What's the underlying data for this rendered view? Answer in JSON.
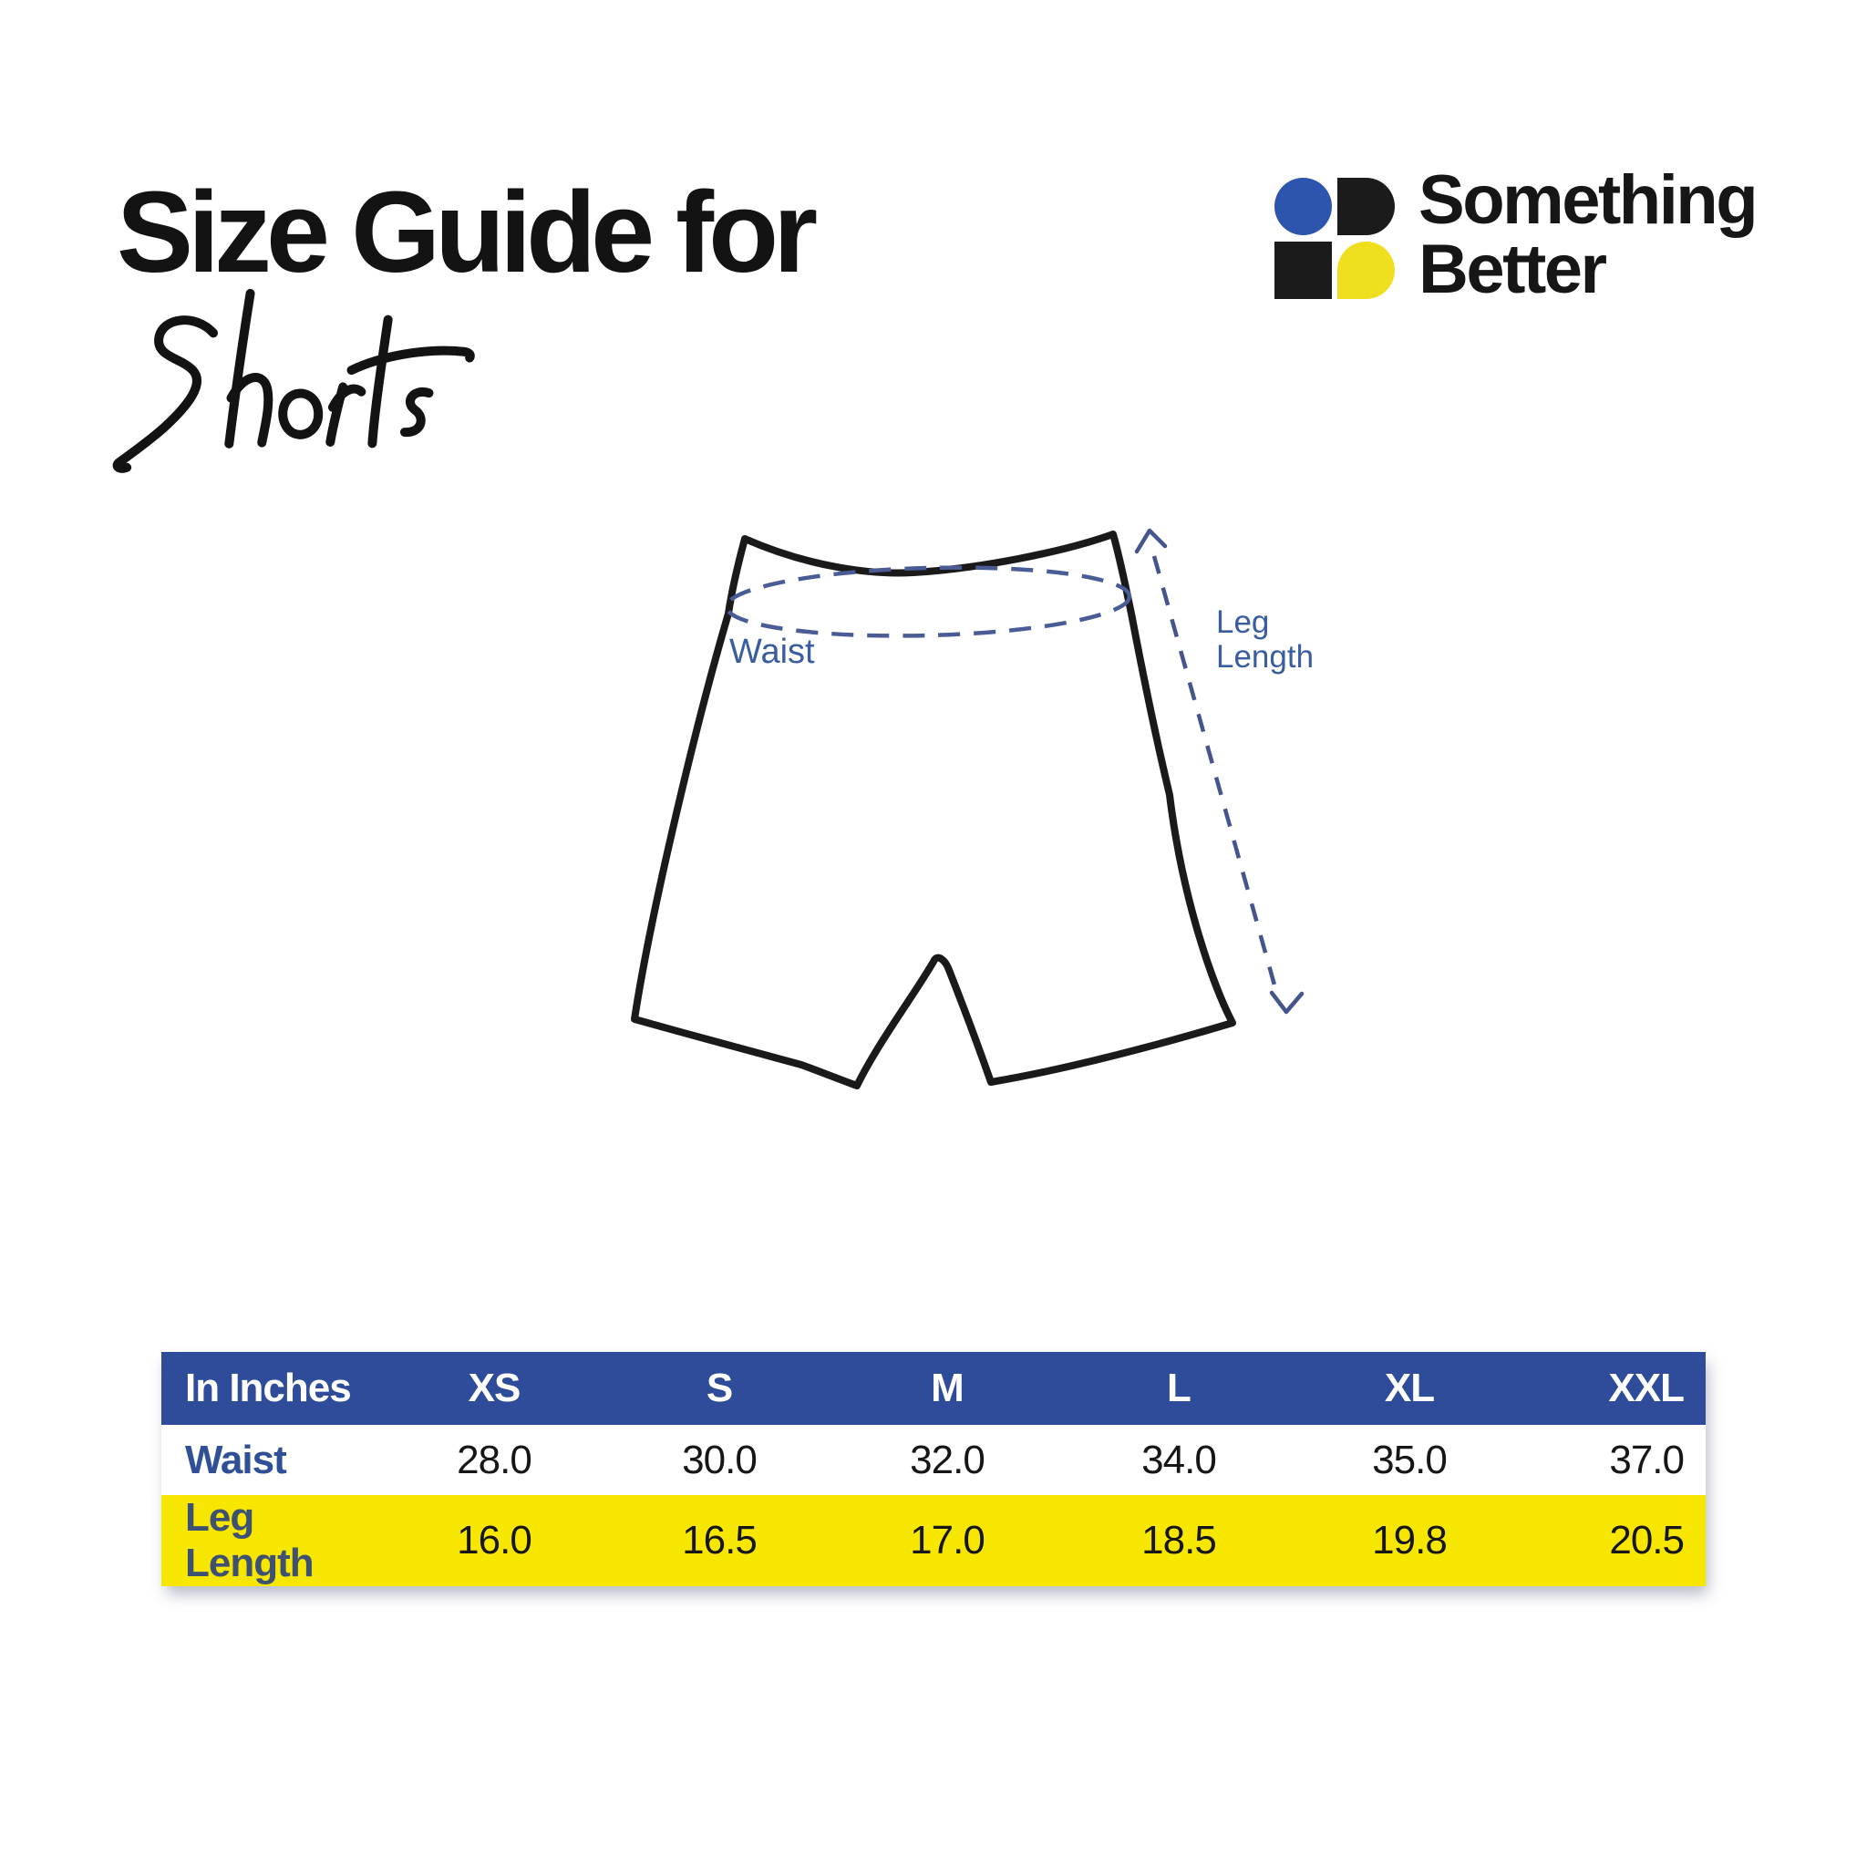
{
  "header": {
    "title_line1": "Size Guide for",
    "title_line2": "Shorts"
  },
  "brand": {
    "name_line1": "Something",
    "name_line2": "Better",
    "mark_colors": {
      "circle": "#2E55AE",
      "d_shape": "#1B1B1B",
      "square": "#1B1B1B",
      "drop": "#F0DF1F"
    }
  },
  "diagram": {
    "waist_label": "Waist",
    "leg_length_line1": "Leg",
    "leg_length_line2": "Length",
    "outline_color": "#1A1A1A",
    "annotation_color": "#44548C",
    "label_color": "#3A5CA0"
  },
  "chart_data": {
    "type": "table",
    "title": "Size Guide for Shorts",
    "unit_label": "In Inches",
    "columns": [
      "XS",
      "S",
      "M",
      "L",
      "XL",
      "XXL"
    ],
    "rows": [
      {
        "label": "Waist",
        "values": [
          28.0,
          30.0,
          32.0,
          34.0,
          35.0,
          37.0
        ]
      },
      {
        "label": "Leg Length",
        "values": [
          16.0,
          16.5,
          17.0,
          18.5,
          19.8,
          20.5
        ]
      }
    ],
    "styles": {
      "header_bg": "#2E4C99",
      "header_text": "#FFFFFF",
      "row1_bg": "#FFFFFF",
      "row2_bg": "#F7E600",
      "row1_label_color": "#2F4F96",
      "row2_label_color": "#3E5173",
      "value_color": "#161616"
    }
  }
}
